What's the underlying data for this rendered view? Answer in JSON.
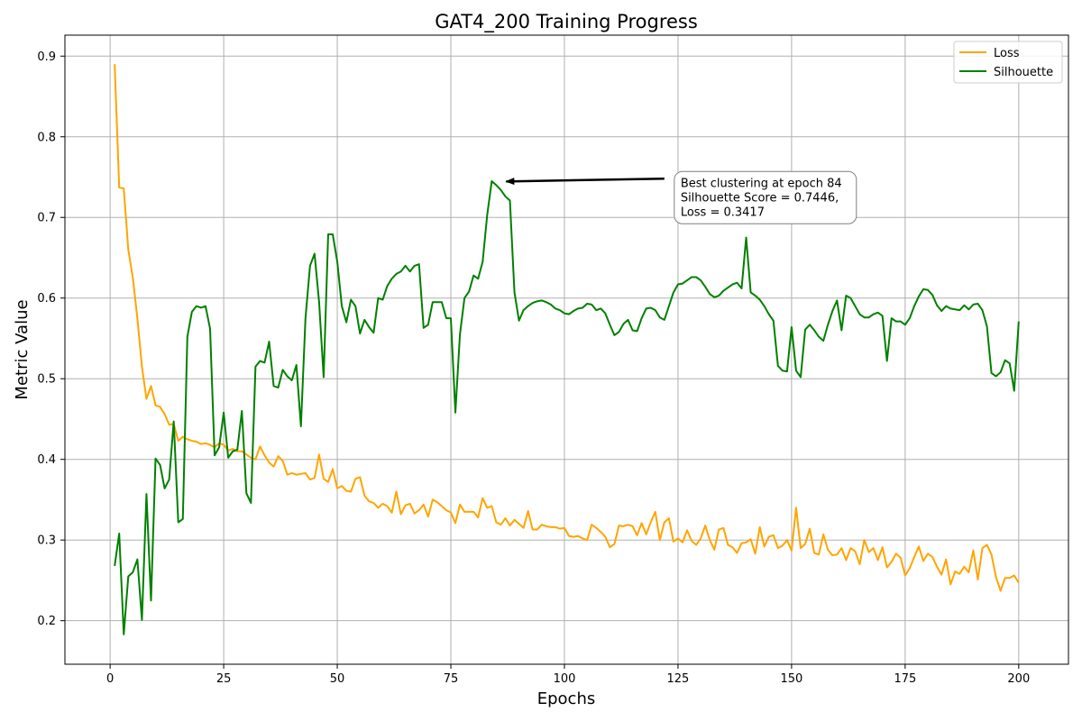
{
  "chart_data": {
    "type": "line",
    "title": "GAT4_200 Training Progress",
    "xlabel": "Epochs",
    "ylabel": "Metric Value",
    "xlim": [
      -9.95,
      210.95
    ],
    "ylim": [
      0.146,
      0.926
    ],
    "xticks": [
      0,
      25,
      50,
      75,
      100,
      125,
      150,
      175,
      200
    ],
    "yticks": [
      0.2,
      0.3,
      0.4,
      0.5,
      0.6,
      0.7,
      0.8,
      0.9
    ],
    "grid": true,
    "legend_position": "top-right",
    "colors": {
      "Loss": "#FFA500",
      "Silhouette": "#008000"
    },
    "series": [
      {
        "name": "Loss",
        "color": "#FFA500",
        "x": [
          1,
          2,
          3,
          4,
          5,
          6,
          7,
          8,
          9,
          10,
          11,
          12,
          13,
          14,
          15,
          16,
          17,
          18,
          19,
          20,
          21,
          22,
          23,
          24,
          25,
          26,
          27,
          28,
          29,
          30,
          31,
          32,
          33,
          34,
          35,
          36,
          37,
          38,
          39,
          40,
          41,
          42,
          43,
          44,
          45,
          46,
          47,
          48,
          49,
          50,
          51,
          52,
          53,
          54,
          55,
          56,
          57,
          58,
          59,
          60,
          61,
          62,
          63,
          64,
          65,
          66,
          67,
          68,
          69,
          70,
          71,
          72,
          73,
          74,
          75,
          76,
          77,
          78,
          79,
          80,
          81,
          82,
          83,
          84,
          85,
          86,
          87,
          88,
          89,
          90,
          91,
          92,
          93,
          94,
          95,
          96,
          97,
          98,
          99,
          100,
          101,
          102,
          103,
          104,
          105,
          106,
          107,
          108,
          109,
          110,
          111,
          112,
          113,
          114,
          115,
          116,
          117,
          118,
          119,
          120,
          121,
          122,
          123,
          124,
          125,
          126,
          127,
          128,
          129,
          130,
          131,
          132,
          133,
          134,
          135,
          136,
          137,
          138,
          139,
          140,
          141,
          142,
          143,
          144,
          145,
          146,
          147,
          148,
          149,
          150,
          151,
          152,
          153,
          154,
          155,
          156,
          157,
          158,
          159,
          160,
          161,
          162,
          163,
          164,
          165,
          166,
          167,
          168,
          169,
          170,
          171,
          172,
          173,
          174,
          175,
          176,
          177,
          178,
          179,
          180,
          181,
          182,
          183,
          184,
          185,
          186,
          187,
          188,
          189,
          190,
          191,
          192,
          193,
          194,
          195,
          196,
          197,
          198,
          199,
          200
        ],
        "values": [
          0.89,
          0.737,
          0.736,
          0.66,
          0.625,
          0.575,
          0.515,
          0.475,
          0.491,
          0.467,
          0.465,
          0.456,
          0.443,
          0.444,
          0.423,
          0.428,
          0.425,
          0.423,
          0.422,
          0.419,
          0.42,
          0.418,
          0.415,
          0.42,
          0.418,
          0.411,
          0.413,
          0.41,
          0.41,
          0.406,
          0.402,
          0.4,
          0.416,
          0.405,
          0.396,
          0.391,
          0.404,
          0.398,
          0.381,
          0.383,
          0.381,
          0.382,
          0.383,
          0.375,
          0.377,
          0.406,
          0.376,
          0.372,
          0.388,
          0.364,
          0.367,
          0.361,
          0.36,
          0.376,
          0.378,
          0.355,
          0.348,
          0.346,
          0.34,
          0.345,
          0.342,
          0.334,
          0.36,
          0.332,
          0.343,
          0.345,
          0.333,
          0.337,
          0.344,
          0.329,
          0.35,
          0.347,
          0.342,
          0.337,
          0.334,
          0.321,
          0.344,
          0.335,
          0.335,
          0.335,
          0.328,
          0.352,
          0.34,
          0.342,
          0.322,
          0.319,
          0.327,
          0.318,
          0.325,
          0.32,
          0.315,
          0.336,
          0.313,
          0.313,
          0.319,
          0.317,
          0.316,
          0.316,
          0.314,
          0.315,
          0.305,
          0.304,
          0.305,
          0.302,
          0.3,
          0.319,
          0.315,
          0.31,
          0.304,
          0.291,
          0.295,
          0.318,
          0.317,
          0.319,
          0.317,
          0.306,
          0.321,
          0.307,
          0.322,
          0.335,
          0.3,
          0.322,
          0.327,
          0.298,
          0.302,
          0.297,
          0.312,
          0.299,
          0.294,
          0.302,
          0.318,
          0.3,
          0.288,
          0.313,
          0.315,
          0.294,
          0.291,
          0.284,
          0.296,
          0.297,
          0.301,
          0.283,
          0.316,
          0.292,
          0.304,
          0.306,
          0.29,
          0.293,
          0.3,
          0.287,
          0.34,
          0.29,
          0.295,
          0.314,
          0.284,
          0.282,
          0.307,
          0.288,
          0.281,
          0.282,
          0.29,
          0.275,
          0.29,
          0.286,
          0.27,
          0.3,
          0.285,
          0.29,
          0.275,
          0.291,
          0.266,
          0.273,
          0.283,
          0.278,
          0.256,
          0.265,
          0.279,
          0.292,
          0.274,
          0.283,
          0.279,
          0.267,
          0.257,
          0.276,
          0.245,
          0.261,
          0.258,
          0.267,
          0.26,
          0.287,
          0.251,
          0.29,
          0.294,
          0.282,
          0.254,
          0.237,
          0.253,
          0.253,
          0.256,
          0.247
        ]
      },
      {
        "name": "Silhouette",
        "color": "#008000",
        "x": [
          1,
          2,
          3,
          4,
          5,
          6,
          7,
          8,
          9,
          10,
          11,
          12,
          13,
          14,
          15,
          16,
          17,
          18,
          19,
          20,
          21,
          22,
          23,
          24,
          25,
          26,
          27,
          28,
          29,
          30,
          31,
          32,
          33,
          34,
          35,
          36,
          37,
          38,
          39,
          40,
          41,
          42,
          43,
          44,
          45,
          46,
          47,
          48,
          49,
          50,
          51,
          52,
          53,
          54,
          55,
          56,
          57,
          58,
          59,
          60,
          61,
          62,
          63,
          64,
          65,
          66,
          67,
          68,
          69,
          70,
          71,
          72,
          73,
          74,
          75,
          76,
          77,
          78,
          79,
          80,
          81,
          82,
          83,
          84,
          85,
          86,
          87,
          88,
          89,
          90,
          91,
          92,
          93,
          94,
          95,
          96,
          97,
          98,
          99,
          100,
          101,
          102,
          103,
          104,
          105,
          106,
          107,
          108,
          109,
          110,
          111,
          112,
          113,
          114,
          115,
          116,
          117,
          118,
          119,
          120,
          121,
          122,
          123,
          124,
          125,
          126,
          127,
          128,
          129,
          130,
          131,
          132,
          133,
          134,
          135,
          136,
          137,
          138,
          139,
          140,
          141,
          142,
          143,
          144,
          145,
          146,
          147,
          148,
          149,
          150,
          151,
          152,
          153,
          154,
          155,
          156,
          157,
          158,
          159,
          160,
          161,
          162,
          163,
          164,
          165,
          166,
          167,
          168,
          169,
          170,
          171,
          172,
          173,
          174,
          175,
          176,
          177,
          178,
          179,
          180,
          181,
          182,
          183,
          184,
          185,
          186,
          187,
          188,
          189,
          190,
          191,
          192,
          193,
          194,
          195,
          196,
          197,
          198,
          199,
          200
        ],
        "values": [
          0.268,
          0.308,
          0.183,
          0.255,
          0.26,
          0.276,
          0.201,
          0.357,
          0.225,
          0.401,
          0.393,
          0.364,
          0.375,
          0.447,
          0.322,
          0.326,
          0.552,
          0.583,
          0.59,
          0.588,
          0.59,
          0.562,
          0.405,
          0.415,
          0.458,
          0.402,
          0.41,
          0.412,
          0.46,
          0.358,
          0.346,
          0.515,
          0.522,
          0.52,
          0.546,
          0.491,
          0.489,
          0.511,
          0.503,
          0.498,
          0.517,
          0.441,
          0.575,
          0.64,
          0.655,
          0.595,
          0.502,
          0.679,
          0.679,
          0.645,
          0.59,
          0.57,
          0.598,
          0.59,
          0.556,
          0.573,
          0.564,
          0.557,
          0.6,
          0.598,
          0.615,
          0.624,
          0.63,
          0.633,
          0.64,
          0.633,
          0.64,
          0.642,
          0.563,
          0.567,
          0.595,
          0.595,
          0.595,
          0.575,
          0.575,
          0.458,
          0.555,
          0.6,
          0.608,
          0.628,
          0.624,
          0.645,
          0.703,
          0.745,
          0.74,
          0.734,
          0.726,
          0.721,
          0.607,
          0.572,
          0.585,
          0.59,
          0.594,
          0.596,
          0.597,
          0.595,
          0.592,
          0.587,
          0.585,
          0.581,
          0.58,
          0.584,
          0.587,
          0.588,
          0.593,
          0.592,
          0.585,
          0.587,
          0.581,
          0.567,
          0.554,
          0.558,
          0.568,
          0.573,
          0.56,
          0.559,
          0.575,
          0.587,
          0.588,
          0.585,
          0.576,
          0.573,
          0.59,
          0.607,
          0.617,
          0.618,
          0.622,
          0.626,
          0.626,
          0.622,
          0.614,
          0.605,
          0.601,
          0.603,
          0.609,
          0.613,
          0.617,
          0.619,
          0.612,
          0.675,
          0.607,
          0.603,
          0.598,
          0.59,
          0.58,
          0.572,
          0.516,
          0.51,
          0.509,
          0.564,
          0.51,
          0.502,
          0.561,
          0.567,
          0.56,
          0.552,
          0.547,
          0.567,
          0.584,
          0.597,
          0.56,
          0.603,
          0.6,
          0.59,
          0.58,
          0.576,
          0.576,
          0.58,
          0.582,
          0.578,
          0.522,
          0.575,
          0.571,
          0.571,
          0.567,
          0.575,
          0.59,
          0.602,
          0.611,
          0.61,
          0.604,
          0.591,
          0.584,
          0.59,
          0.587,
          0.586,
          0.585,
          0.591,
          0.586,
          0.592,
          0.593,
          0.585,
          0.565,
          0.507,
          0.503,
          0.508,
          0.523,
          0.519,
          0.485,
          0.571
        ]
      }
    ],
    "annotation": {
      "lines": [
        "Best clustering at epoch 84",
        "Silhouette Score = 0.7446,",
        "Loss = 0.3417"
      ],
      "point_x": 84,
      "point_y": 0.7446,
      "text_anchor_x": 122,
      "text_anchor_y": 0.748
    }
  }
}
